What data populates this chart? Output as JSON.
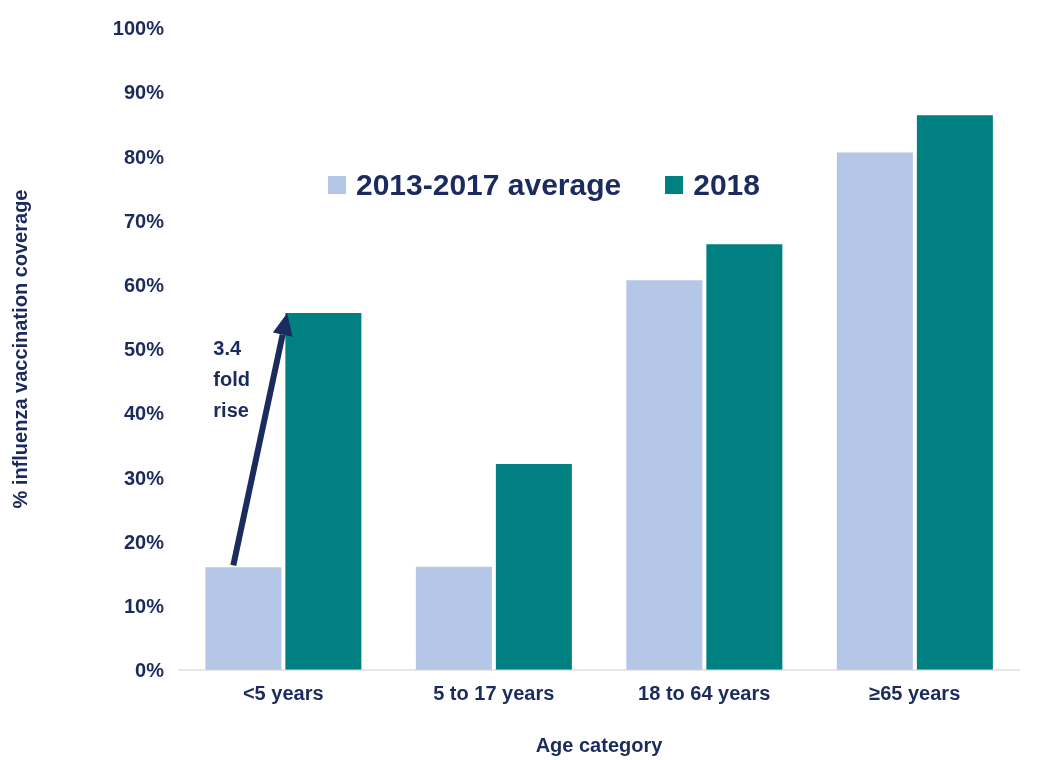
{
  "chart_data": {
    "type": "bar",
    "ylabel": "% influenza vaccination coverage",
    "xlabel": "Age category",
    "categories": [
      "<5 years",
      "5 to 17 years",
      "18 to 64 years",
      "≥65 years"
    ],
    "series": [
      {
        "name": "2013-2017 average",
        "color": "#b4c7e7",
        "values": [
          16,
          16.1,
          60.7,
          80.6
        ]
      },
      {
        "name": "2018",
        "color": "#008080",
        "values": [
          55.6,
          32.1,
          66.3,
          86.4
        ]
      }
    ],
    "ylim": [
      0,
      100
    ],
    "yticks": [
      {
        "value": 0,
        "label": "0%"
      },
      {
        "value": 10,
        "label": "10%"
      },
      {
        "value": 20,
        "label": "20%"
      },
      {
        "value": 30,
        "label": "30%"
      },
      {
        "value": 40,
        "label": "40%"
      },
      {
        "value": 50,
        "label": "50%"
      },
      {
        "value": 60,
        "label": "60%"
      },
      {
        "value": 70,
        "label": "70%"
      },
      {
        "value": 80,
        "label": "80%"
      },
      {
        "value": 90,
        "label": "90%"
      },
      {
        "value": 100,
        "label": "100%"
      }
    ],
    "grid": false,
    "legend": "top",
    "annotations": [
      {
        "text": "3.4 fold rise",
        "x": "<5 years",
        "y": 55.6
      }
    ]
  }
}
